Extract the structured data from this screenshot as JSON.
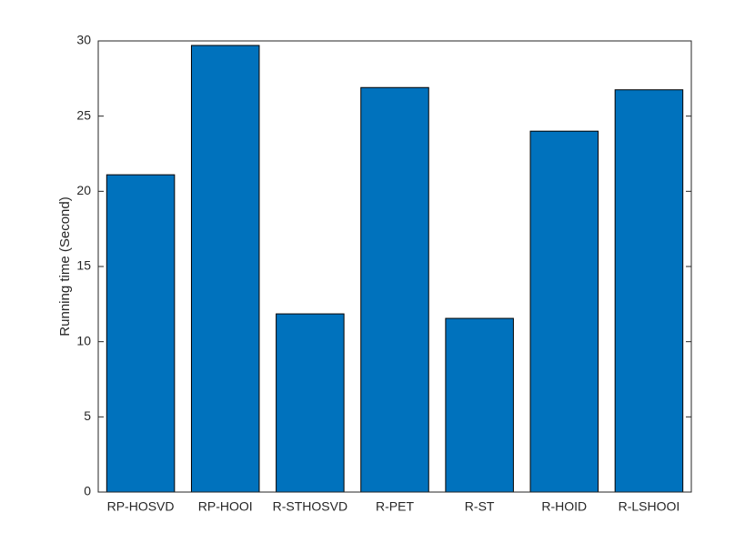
{
  "chart_data": {
    "type": "bar",
    "y_label": "Running time (Second)",
    "categories": [
      "RP-HOSVD",
      "RP-HOOI",
      "R-STHOSVD",
      "R-PET",
      "R-ST",
      "R-HOID",
      "R-LSHOOI"
    ],
    "values": [
      21.1,
      29.7,
      11.85,
      26.9,
      11.55,
      24.0,
      26.75
    ],
    "color": "#0072bd",
    "ylim": [
      0,
      30
    ],
    "yticks": [
      0,
      5,
      10,
      15,
      20,
      25,
      30
    ],
    "grid": false
  }
}
